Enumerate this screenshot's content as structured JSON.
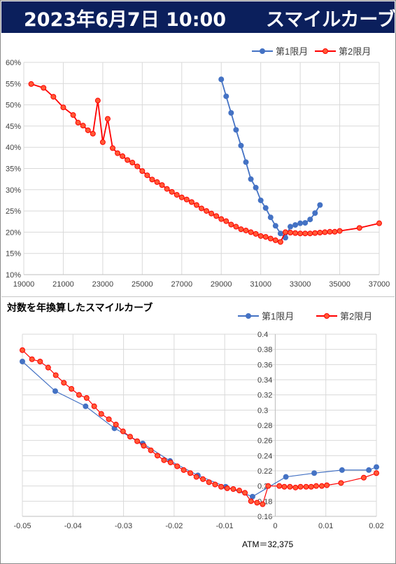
{
  "header": {
    "date_time": "2023年6月7日 10:00",
    "title": "スマイルカーブ"
  },
  "colors": {
    "header_bg": "#0b1f5c",
    "series1": "#4472c4",
    "series2": "#ff0000",
    "marker2_fill": "#ff5a36"
  },
  "chart_data": [
    {
      "type": "line",
      "title": "",
      "xlim": [
        19000,
        37000
      ],
      "ylim": [
        0.1,
        0.6
      ],
      "x_ticks": [
        "19000",
        "21000",
        "23000",
        "25000",
        "27000",
        "29000",
        "31000",
        "33000",
        "35000",
        "37000"
      ],
      "y_ticks": [
        "10%",
        "15%",
        "20%",
        "25%",
        "30%",
        "35%",
        "40%",
        "45%",
        "50%",
        "55%",
        "60%"
      ],
      "legend": "top-right",
      "grid": true,
      "series": [
        {
          "name": "第1限月",
          "points": [
            [
              29000,
              0.56
            ],
            [
              29250,
              0.52
            ],
            [
              29500,
              0.481
            ],
            [
              29750,
              0.441
            ],
            [
              30000,
              0.404
            ],
            [
              30250,
              0.365
            ],
            [
              30500,
              0.325
            ],
            [
              30750,
              0.305
            ],
            [
              31000,
              0.275
            ],
            [
              31250,
              0.257
            ],
            [
              31500,
              0.235
            ],
            [
              31750,
              0.215
            ],
            [
              32000,
              0.197
            ],
            [
              32250,
              0.187
            ],
            [
              32500,
              0.213
            ],
            [
              32750,
              0.217
            ],
            [
              33000,
              0.221
            ],
            [
              33250,
              0.222
            ],
            [
              33500,
              0.23
            ],
            [
              33750,
              0.245
            ],
            [
              34000,
              0.264
            ]
          ]
        },
        {
          "name": "第2限月",
          "points": [
            [
              19375,
              0.549
            ],
            [
              20000,
              0.54
            ],
            [
              20500,
              0.519
            ],
            [
              21000,
              0.494
            ],
            [
              21500,
              0.476
            ],
            [
              21750,
              0.458
            ],
            [
              22000,
              0.451
            ],
            [
              22250,
              0.44
            ],
            [
              22500,
              0.432
            ],
            [
              22750,
              0.51
            ],
            [
              23000,
              0.412
            ],
            [
              23250,
              0.467
            ],
            [
              23500,
              0.398
            ],
            [
              23750,
              0.386
            ],
            [
              24000,
              0.379
            ],
            [
              24250,
              0.37
            ],
            [
              24500,
              0.364
            ],
            [
              24750,
              0.355
            ],
            [
              25000,
              0.344
            ],
            [
              25250,
              0.334
            ],
            [
              25500,
              0.324
            ],
            [
              25750,
              0.318
            ],
            [
              26000,
              0.311
            ],
            [
              26250,
              0.302
            ],
            [
              26500,
              0.295
            ],
            [
              26750,
              0.288
            ],
            [
              27000,
              0.282
            ],
            [
              27250,
              0.277
            ],
            [
              27500,
              0.271
            ],
            [
              27750,
              0.264
            ],
            [
              28000,
              0.256
            ],
            [
              28250,
              0.25
            ],
            [
              28500,
              0.244
            ],
            [
              28750,
              0.238
            ],
            [
              29000,
              0.231
            ],
            [
              29250,
              0.226
            ],
            [
              29500,
              0.218
            ],
            [
              29750,
              0.213
            ],
            [
              30000,
              0.207
            ],
            [
              30250,
              0.204
            ],
            [
              30500,
              0.2
            ],
            [
              30750,
              0.196
            ],
            [
              31000,
              0.191
            ],
            [
              31250,
              0.189
            ],
            [
              31500,
              0.185
            ],
            [
              31750,
              0.181
            ],
            [
              32000,
              0.177
            ],
            [
              32250,
              0.2
            ],
            [
              32500,
              0.199
            ],
            [
              32750,
              0.198
            ],
            [
              33000,
              0.197
            ],
            [
              33250,
              0.197
            ],
            [
              33500,
              0.197
            ],
            [
              33750,
              0.198
            ],
            [
              34000,
              0.199
            ],
            [
              34250,
              0.2
            ],
            [
              34500,
              0.201
            ],
            [
              34750,
              0.201
            ],
            [
              35000,
              0.203
            ],
            [
              36000,
              0.21
            ],
            [
              37000,
              0.221
            ]
          ]
        }
      ]
    },
    {
      "type": "line",
      "title": "対数を年換算したスマイルカーブ",
      "xlim": [
        -0.05,
        0.02
      ],
      "ylim": [
        0.16,
        0.4
      ],
      "x_ticks": [
        "-0.05",
        "-0.04",
        "-0.03",
        "-0.02",
        "-0.01",
        "0",
        "0.01",
        "0.02"
      ],
      "y_ticks": [
        "0.16",
        "0.18",
        "0.2",
        "0.22",
        "0.24",
        "0.26",
        "0.28",
        "0.3",
        "0.32",
        "0.34",
        "0.36",
        "0.38",
        "0.4"
      ],
      "legend": "top-right",
      "grid": true,
      "annotation": "ATM＝32,375",
      "series": [
        {
          "name": "第1限月",
          "points": [
            [
              -0.05,
              0.364
            ],
            [
              -0.0435,
              0.325
            ],
            [
              -0.0375,
              0.305
            ],
            [
              -0.0318,
              0.276
            ],
            [
              -0.0262,
              0.256
            ],
            [
              -0.0208,
              0.233
            ],
            [
              -0.0153,
              0.214
            ],
            [
              -0.0098,
              0.199
            ],
            [
              -0.0045,
              0.186
            ],
            [
              0.0021,
              0.212
            ],
            [
              0.0077,
              0.217
            ],
            [
              0.0132,
              0.221
            ],
            [
              0.0185,
              0.221
            ],
            [
              0.02,
              0.225
            ]
          ]
        },
        {
          "name": "第2限月",
          "points": [
            [
              -0.05,
              0.379
            ],
            [
              -0.0481,
              0.367
            ],
            [
              -0.0465,
              0.364
            ],
            [
              -0.0449,
              0.356
            ],
            [
              -0.0434,
              0.346
            ],
            [
              -0.0418,
              0.336
            ],
            [
              -0.0403,
              0.328
            ],
            [
              -0.0388,
              0.32
            ],
            [
              -0.0373,
              0.316
            ],
            [
              -0.0358,
              0.305
            ],
            [
              -0.0344,
              0.295
            ],
            [
              -0.0329,
              0.288
            ],
            [
              -0.0315,
              0.281
            ],
            [
              -0.0301,
              0.272
            ],
            [
              -0.0287,
              0.265
            ],
            [
              -0.0273,
              0.259
            ],
            [
              -0.026,
              0.253
            ],
            [
              -0.0246,
              0.247
            ],
            [
              -0.0233,
              0.24
            ],
            [
              -0.022,
              0.234
            ],
            [
              -0.0207,
              0.231
            ],
            [
              -0.0194,
              0.226
            ],
            [
              -0.0181,
              0.221
            ],
            [
              -0.0168,
              0.217
            ],
            [
              -0.0156,
              0.212
            ],
            [
              -0.0143,
              0.209
            ],
            [
              -0.0131,
              0.205
            ],
            [
              -0.0119,
              0.202
            ],
            [
              -0.0107,
              0.199
            ],
            [
              -0.0095,
              0.197
            ],
            [
              -0.0083,
              0.196
            ],
            [
              -0.0071,
              0.194
            ],
            [
              -0.006,
              0.191
            ],
            [
              -0.0048,
              0.18
            ],
            [
              -0.0036,
              0.178
            ],
            [
              -0.0025,
              0.176
            ],
            [
              -0.0014,
              0.2
            ],
            [
              0.0008,
              0.2
            ],
            [
              0.0018,
              0.199
            ],
            [
              0.0029,
              0.199
            ],
            [
              0.004,
              0.198
            ],
            [
              0.005,
              0.199
            ],
            [
              0.0061,
              0.199
            ],
            [
              0.0071,
              0.199
            ],
            [
              0.0081,
              0.2
            ],
            [
              0.0092,
              0.2
            ],
            [
              0.0102,
              0.201
            ],
            [
              0.013,
              0.204
            ],
            [
              0.0175,
              0.211
            ],
            [
              0.02,
              0.217
            ]
          ]
        }
      ]
    }
  ]
}
